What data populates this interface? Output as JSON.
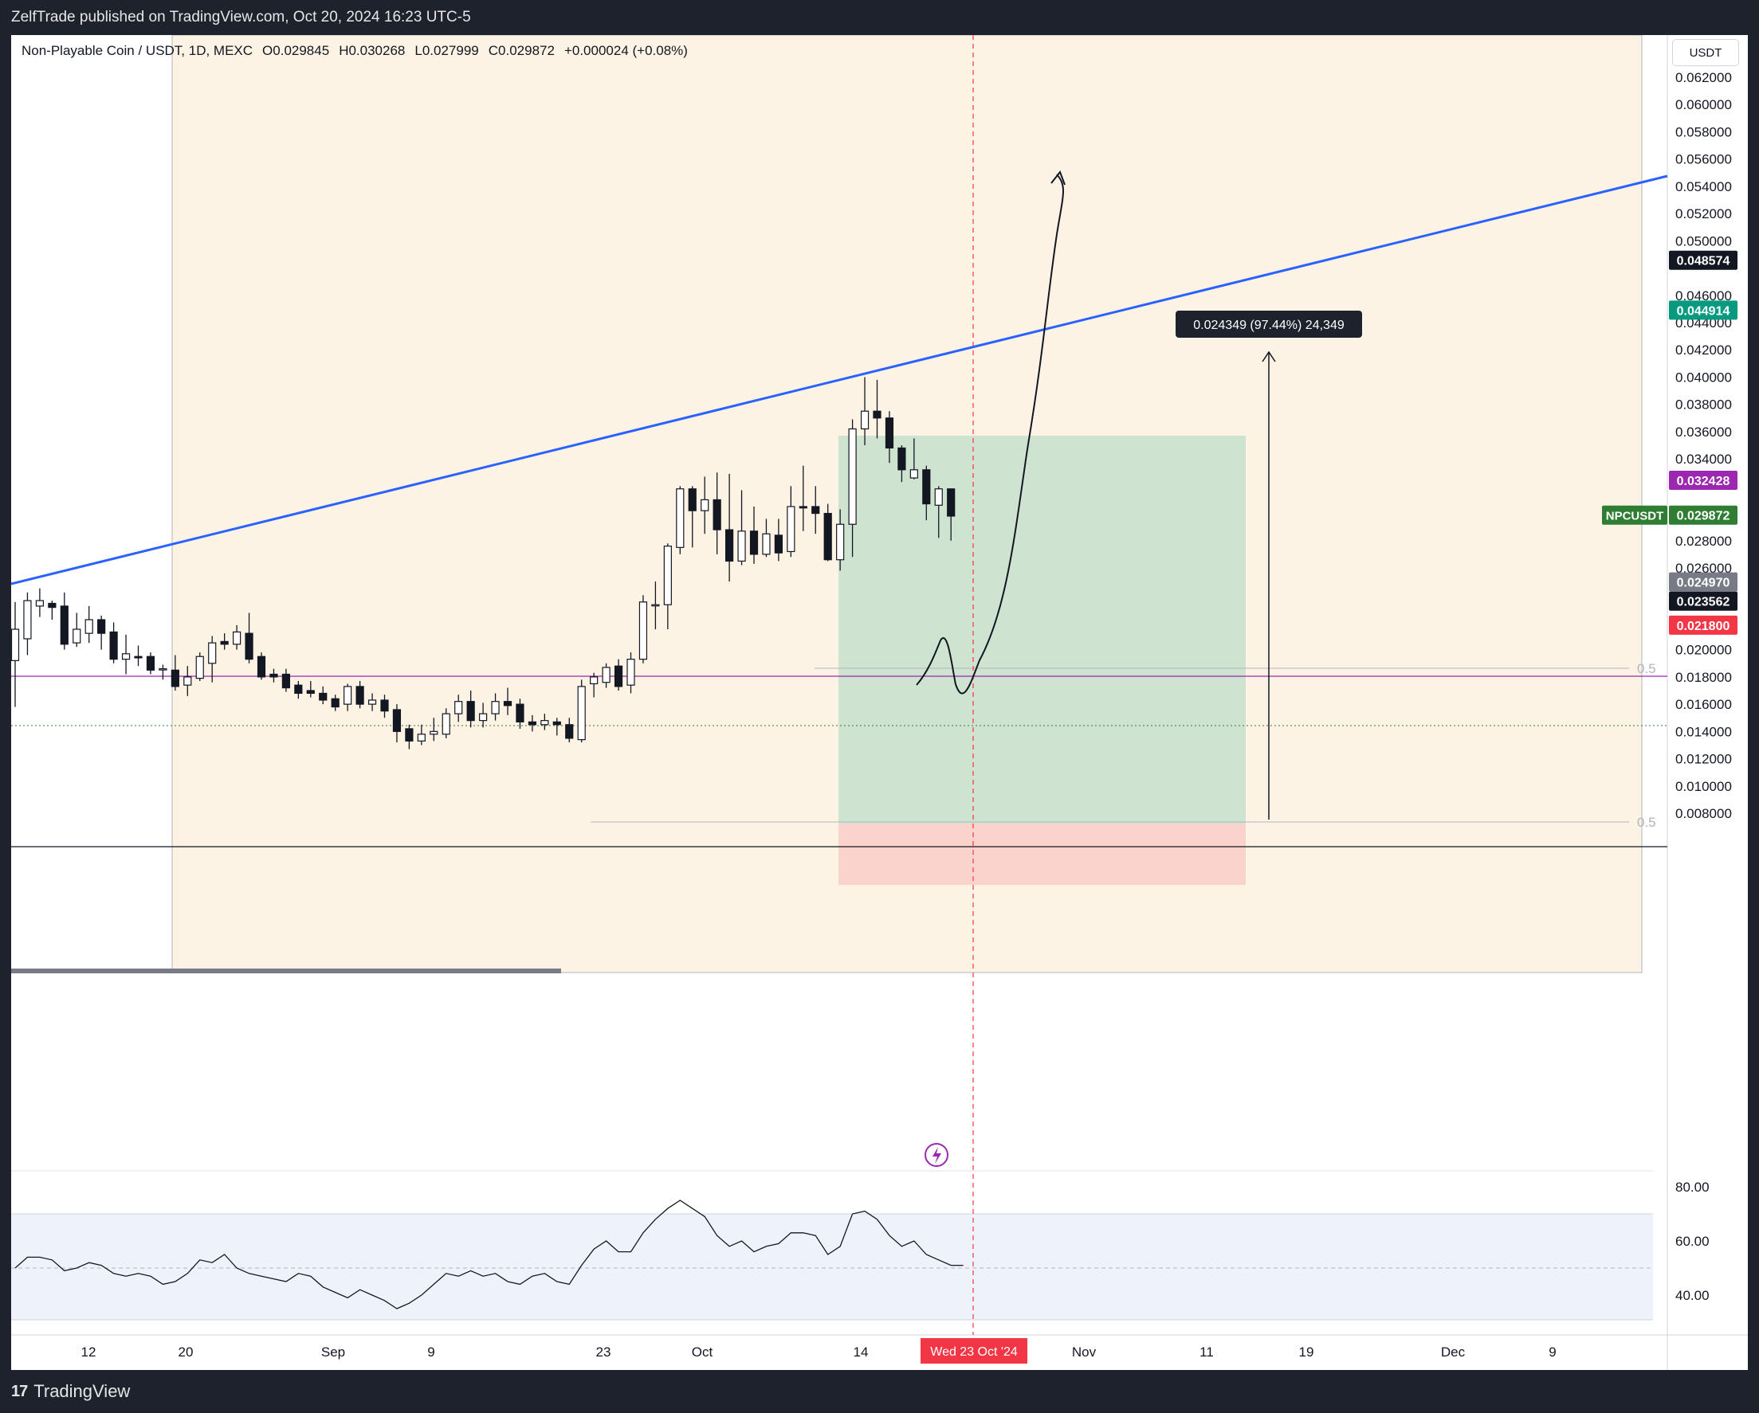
{
  "header": {
    "published_text": "ZelfTrade published on TradingView.com, Oct 20, 2024 16:23 UTC-5"
  },
  "legend": {
    "symbol_text": "Non-Playable Coin / USDT, 1D, MEXC",
    "open": "O0.029845",
    "high": "H0.030268",
    "low": "L0.027999",
    "close": "C0.029872",
    "change": "+0.000024 (+0.08%)"
  },
  "currency_button": "USDT",
  "price_axis": {
    "ticks": [
      "0.062000",
      "0.060000",
      "0.058000",
      "0.056000",
      "0.054000",
      "0.052000",
      "0.050000",
      "0.046000",
      "0.044000",
      "0.042000",
      "0.040000",
      "0.038000",
      "0.036000",
      "0.034000",
      "0.028000",
      "0.026000",
      "0.020000",
      "0.018000",
      "0.016000",
      "0.014000",
      "0.012000",
      "0.010000",
      "0.008000"
    ],
    "badges": [
      {
        "text": "0.048574",
        "color": "#131722"
      },
      {
        "text": "0.044914",
        "color": "#089981"
      },
      {
        "text": "0.032428",
        "color": "#9c27b0"
      },
      {
        "text": "0.029872",
        "color": "#2e7d32"
      },
      {
        "text": "0.024970",
        "color": "#787b86"
      },
      {
        "text": "0.023562",
        "color": "#131722"
      },
      {
        "text": "0.021800",
        "color": "#f23645"
      }
    ],
    "symbol_tag": "NPCUSDT",
    "fib_labels": [
      "0.5",
      "0.5"
    ]
  },
  "measure_label": "0.024349 (97.44%) 24,349",
  "rsi_axis": {
    "ticks": [
      "80.00",
      "60.00",
      "40.00"
    ]
  },
  "time_axis": {
    "ticks": [
      "12",
      "20",
      "Sep",
      "9",
      "23",
      "Oct",
      "14",
      "Nov",
      "11",
      "19",
      "Dec",
      "9"
    ],
    "crosshair_label": "Wed 23 Oct '24"
  },
  "footer": {
    "brand": "TradingView"
  },
  "chart_data": {
    "type": "candlestick",
    "symbol": "NPCUSDT",
    "timeframe": "1D",
    "exchange": "MEXC",
    "ylim": [
      0.007,
      0.065
    ],
    "candles": [
      {
        "o": 0.0192,
        "c": 0.0215,
        "h": 0.0235,
        "l": 0.0158
      },
      {
        "o": 0.0208,
        "c": 0.0236,
        "h": 0.0242,
        "l": 0.0196
      },
      {
        "o": 0.0232,
        "c": 0.0236,
        "h": 0.0245,
        "l": 0.0224
      },
      {
        "o": 0.0234,
        "c": 0.0231,
        "h": 0.0236,
        "l": 0.0222
      },
      {
        "o": 0.0232,
        "c": 0.0204,
        "h": 0.0242,
        "l": 0.02
      },
      {
        "o": 0.0205,
        "c": 0.0215,
        "h": 0.0227,
        "l": 0.0202
      },
      {
        "o": 0.0212,
        "c": 0.0222,
        "h": 0.0232,
        "l": 0.0205
      },
      {
        "o": 0.0222,
        "c": 0.0212,
        "h": 0.0225,
        "l": 0.02
      },
      {
        "o": 0.0213,
        "c": 0.0193,
        "h": 0.022,
        "l": 0.019
      },
      {
        "o": 0.0193,
        "c": 0.0197,
        "h": 0.0211,
        "l": 0.0182
      },
      {
        "o": 0.0195,
        "c": 0.0194,
        "h": 0.0203,
        "l": 0.0188
      },
      {
        "o": 0.0195,
        "c": 0.0185,
        "h": 0.0198,
        "l": 0.0182
      },
      {
        "o": 0.0186,
        "c": 0.0186,
        "h": 0.0189,
        "l": 0.0178
      },
      {
        "o": 0.0185,
        "c": 0.0173,
        "h": 0.0196,
        "l": 0.017
      },
      {
        "o": 0.0174,
        "c": 0.018,
        "h": 0.0188,
        "l": 0.0166
      },
      {
        "o": 0.0179,
        "c": 0.0195,
        "h": 0.0198,
        "l": 0.0177
      },
      {
        "o": 0.019,
        "c": 0.0205,
        "h": 0.021,
        "l": 0.0176
      },
      {
        "o": 0.0206,
        "c": 0.0204,
        "h": 0.0212,
        "l": 0.02
      },
      {
        "o": 0.0204,
        "c": 0.0213,
        "h": 0.0218,
        "l": 0.02
      },
      {
        "o": 0.0212,
        "c": 0.0193,
        "h": 0.0227,
        "l": 0.019
      },
      {
        "o": 0.0195,
        "c": 0.018,
        "h": 0.0198,
        "l": 0.0178
      },
      {
        "o": 0.0182,
        "c": 0.018,
        "h": 0.0186,
        "l": 0.0176
      },
      {
        "o": 0.0182,
        "c": 0.0172,
        "h": 0.0186,
        "l": 0.0169
      },
      {
        "o": 0.0174,
        "c": 0.0168,
        "h": 0.0177,
        "l": 0.0164
      },
      {
        "o": 0.017,
        "c": 0.0168,
        "h": 0.0177,
        "l": 0.0165
      },
      {
        "o": 0.0168,
        "c": 0.0163,
        "h": 0.0173,
        "l": 0.016
      },
      {
        "o": 0.0164,
        "c": 0.0158,
        "h": 0.0167,
        "l": 0.0155
      },
      {
        "o": 0.016,
        "c": 0.0173,
        "h": 0.0175,
        "l": 0.0155
      },
      {
        "o": 0.0173,
        "c": 0.016,
        "h": 0.0177,
        "l": 0.0157
      },
      {
        "o": 0.016,
        "c": 0.0163,
        "h": 0.0168,
        "l": 0.0155
      },
      {
        "o": 0.0163,
        "c": 0.0155,
        "h": 0.0167,
        "l": 0.015
      },
      {
        "o": 0.0156,
        "c": 0.014,
        "h": 0.016,
        "l": 0.0132
      },
      {
        "o": 0.0142,
        "c": 0.0133,
        "h": 0.0145,
        "l": 0.0127
      },
      {
        "o": 0.0133,
        "c": 0.0138,
        "h": 0.0145,
        "l": 0.013
      },
      {
        "o": 0.0138,
        "c": 0.014,
        "h": 0.015,
        "l": 0.0133
      },
      {
        "o": 0.0138,
        "c": 0.0153,
        "h": 0.0157,
        "l": 0.0135
      },
      {
        "o": 0.0153,
        "c": 0.0162,
        "h": 0.0167,
        "l": 0.0147
      },
      {
        "o": 0.0162,
        "c": 0.0148,
        "h": 0.017,
        "l": 0.0143
      },
      {
        "o": 0.0148,
        "c": 0.0153,
        "h": 0.0161,
        "l": 0.0143
      },
      {
        "o": 0.0153,
        "c": 0.0162,
        "h": 0.0168,
        "l": 0.0148
      },
      {
        "o": 0.0162,
        "c": 0.0159,
        "h": 0.0172,
        "l": 0.0152
      },
      {
        "o": 0.016,
        "c": 0.0147,
        "h": 0.0164,
        "l": 0.0142
      },
      {
        "o": 0.0147,
        "c": 0.0145,
        "h": 0.0152,
        "l": 0.014
      },
      {
        "o": 0.0145,
        "c": 0.0148,
        "h": 0.0153,
        "l": 0.0141
      },
      {
        "o": 0.0147,
        "c": 0.0145,
        "h": 0.015,
        "l": 0.0137
      },
      {
        "o": 0.0145,
        "c": 0.0135,
        "h": 0.015,
        "l": 0.0132
      },
      {
        "o": 0.0134,
        "c": 0.0173,
        "h": 0.0178,
        "l": 0.0132
      },
      {
        "o": 0.0175,
        "c": 0.018,
        "h": 0.0183,
        "l": 0.0165
      },
      {
        "o": 0.0176,
        "c": 0.0187,
        "h": 0.019,
        "l": 0.0172
      },
      {
        "o": 0.0188,
        "c": 0.0173,
        "h": 0.0193,
        "l": 0.017
      },
      {
        "o": 0.0174,
        "c": 0.0193,
        "h": 0.0198,
        "l": 0.0168
      },
      {
        "o": 0.0193,
        "c": 0.0235,
        "h": 0.024,
        "l": 0.019
      },
      {
        "o": 0.0233,
        "c": 0.0233,
        "h": 0.025,
        "l": 0.0215
      },
      {
        "o": 0.0233,
        "c": 0.0276,
        "h": 0.0278,
        "l": 0.0215
      },
      {
        "o": 0.0275,
        "c": 0.0318,
        "h": 0.032,
        "l": 0.027
      },
      {
        "o": 0.0318,
        "c": 0.0302,
        "h": 0.032,
        "l": 0.0275
      },
      {
        "o": 0.0302,
        "c": 0.031,
        "h": 0.0327,
        "l": 0.0285
      },
      {
        "o": 0.031,
        "c": 0.0288,
        "h": 0.033,
        "l": 0.027
      },
      {
        "o": 0.0288,
        "c": 0.0265,
        "h": 0.0329,
        "l": 0.025
      },
      {
        "o": 0.0265,
        "c": 0.0287,
        "h": 0.0317,
        "l": 0.0262
      },
      {
        "o": 0.0287,
        "c": 0.027,
        "h": 0.0305,
        "l": 0.0263
      },
      {
        "o": 0.027,
        "c": 0.0285,
        "h": 0.0296,
        "l": 0.0268
      },
      {
        "o": 0.0284,
        "c": 0.0271,
        "h": 0.0296,
        "l": 0.0265
      },
      {
        "o": 0.0272,
        "c": 0.0305,
        "h": 0.032,
        "l": 0.0268
      },
      {
        "o": 0.0305,
        "c": 0.0304,
        "h": 0.0335,
        "l": 0.0287
      },
      {
        "o": 0.0305,
        "c": 0.03,
        "h": 0.032,
        "l": 0.0285
      },
      {
        "o": 0.03,
        "c": 0.0266,
        "h": 0.0307,
        "l": 0.0265
      },
      {
        "o": 0.0266,
        "c": 0.0292,
        "h": 0.0303,
        "l": 0.0258
      },
      {
        "o": 0.0292,
        "c": 0.0362,
        "h": 0.0369,
        "l": 0.0268
      },
      {
        "o": 0.0362,
        "c": 0.0375,
        "h": 0.04,
        "l": 0.035
      },
      {
        "o": 0.0375,
        "c": 0.037,
        "h": 0.0398,
        "l": 0.0355
      },
      {
        "o": 0.037,
        "c": 0.0348,
        "h": 0.0375,
        "l": 0.0337
      },
      {
        "o": 0.0348,
        "c": 0.0332,
        "h": 0.035,
        "l": 0.0323
      },
      {
        "o": 0.0326,
        "c": 0.0332,
        "h": 0.0355,
        "l": 0.0325
      },
      {
        "o": 0.0332,
        "c": 0.0307,
        "h": 0.0335,
        "l": 0.0295
      },
      {
        "o": 0.0306,
        "c": 0.0318,
        "h": 0.032,
        "l": 0.0282
      },
      {
        "o": 0.0318,
        "c": 0.0298,
        "h": 0.0318,
        "l": 0.028
      }
    ],
    "rsi": {
      "values": [
        50,
        54,
        54,
        53,
        49,
        50,
        52,
        51,
        48,
        47,
        48,
        47,
        44,
        45,
        48,
        53,
        52,
        55,
        50,
        48,
        47,
        46,
        45,
        48,
        47,
        43,
        41,
        39,
        42,
        40,
        38,
        35,
        37,
        40,
        44,
        48,
        47,
        49,
        47,
        48,
        45,
        44,
        47,
        48,
        45,
        44,
        51,
        57,
        60,
        56,
        56,
        63,
        68,
        72,
        75,
        72,
        69,
        62,
        58,
        60,
        56,
        58,
        59,
        63,
        63,
        62,
        55,
        58,
        70,
        71,
        68,
        62,
        58,
        60,
        55,
        53,
        51,
        51
      ],
      "ylim": [
        30,
        85
      ],
      "band": [
        30,
        70
      ]
    },
    "annotations": {
      "trendline": "blue rising",
      "long_position": {
        "entry": 0.02497,
        "target": 0.044914,
        "stop": 0.0218
      },
      "horizontal_levels": [
        0.032428,
        0.023562
      ],
      "price_range_measure": "0.024349 (97.44%) 24,349"
    }
  }
}
